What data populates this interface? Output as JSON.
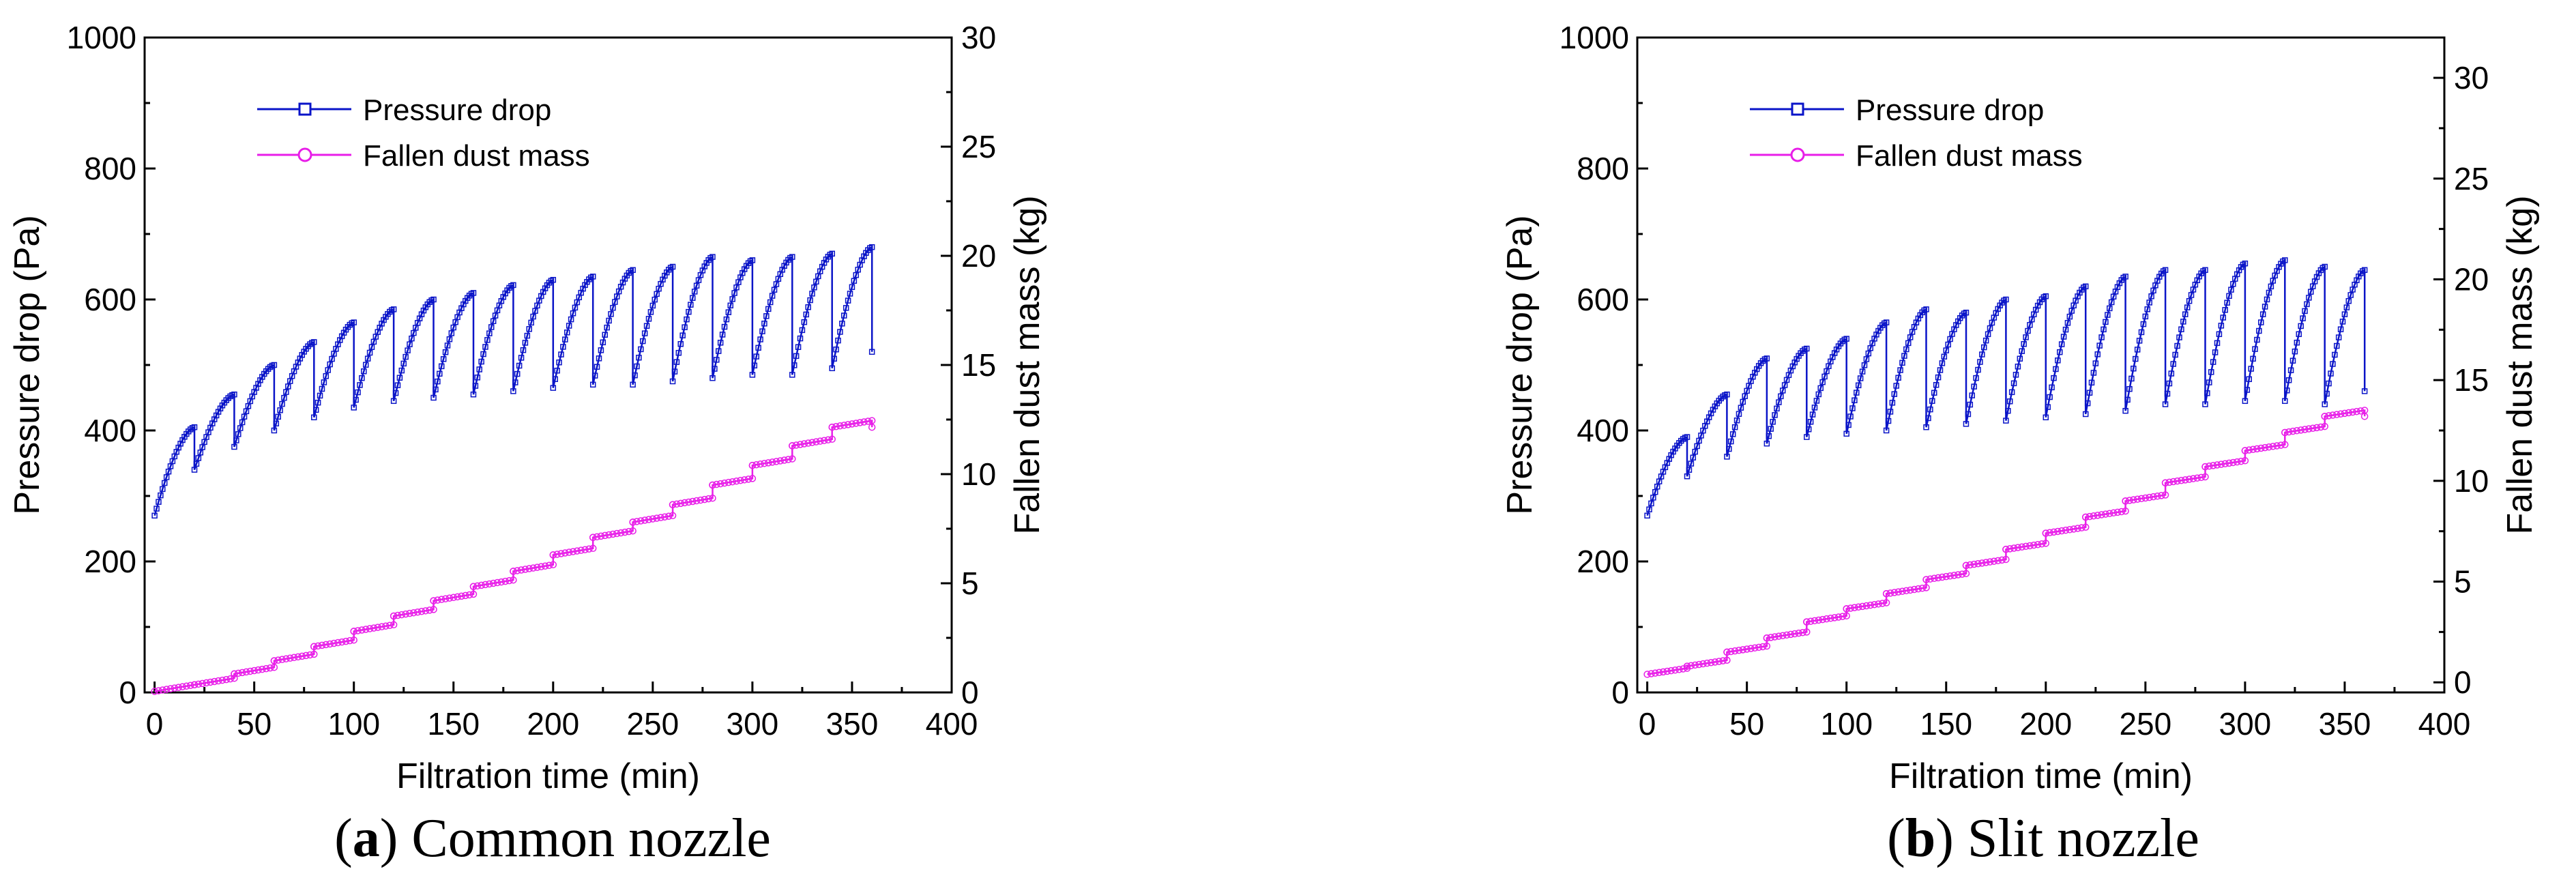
{
  "colors": {
    "pressure": "#0a14c8",
    "mass": "#e81ee8",
    "axis": "#000000"
  },
  "chart_data": [
    {
      "type": "line",
      "caption_letter": "a",
      "caption_text": " Common nozzle",
      "xlabel": "Filtration time (min)",
      "ylabel": "Pressure drop (Pa)",
      "y2label": "Fallen dust mass (kg)",
      "xlim": [
        -5,
        400
      ],
      "ylim": [
        0,
        1000
      ],
      "y2lim": [
        0,
        30
      ],
      "xticks": [
        0,
        50,
        100,
        150,
        200,
        250,
        300,
        350,
        400
      ],
      "yticks": [
        0,
        200,
        400,
        600,
        800,
        1000
      ],
      "y2ticks": [
        0,
        5,
        10,
        15,
        20,
        25,
        30
      ],
      "legend": [
        "Pressure drop",
        "Fallen dust mass"
      ],
      "legend_position": "top-left",
      "cycle_minutes": 20,
      "series": [
        {
          "name": "Pressure drop",
          "axis": "left",
          "marker": "square",
          "cycle_start_min": [
            0,
            20,
            40,
            60,
            80,
            100,
            120,
            140,
            160,
            180,
            200,
            220,
            240,
            260,
            280,
            300,
            320,
            340
          ],
          "cycle_start_pa": [
            270,
            340,
            375,
            400,
            420,
            435,
            445,
            450,
            455,
            460,
            465,
            470,
            470,
            475,
            480,
            485,
            485,
            495
          ],
          "cycle_peak_pa": [
            405,
            455,
            500,
            535,
            565,
            585,
            600,
            610,
            622,
            630,
            635,
            645,
            650,
            665,
            660,
            665,
            670,
            680
          ],
          "end": {
            "x": 360,
            "y": 520
          }
        },
        {
          "name": "Fallen dust mass",
          "axis": "right",
          "marker": "circle",
          "x": [
            0,
            20,
            40,
            60,
            80,
            100,
            120,
            140,
            160,
            180,
            200,
            220,
            240,
            260,
            280,
            300,
            320,
            340,
            360
          ],
          "y": [
            0.05,
            0.35,
            0.85,
            1.45,
            2.1,
            2.8,
            3.5,
            4.2,
            4.85,
            5.55,
            6.3,
            7.1,
            7.8,
            8.6,
            9.5,
            10.4,
            11.3,
            12.15,
            12.15
          ]
        }
      ]
    },
    {
      "type": "line",
      "caption_letter": "b",
      "caption_text": " Slit nozzle",
      "xlabel": "Filtration time (min)",
      "ylabel": "Pressure drop (Pa)",
      "y2label": "Fallen dust mass (kg)",
      "xlim": [
        -5,
        400
      ],
      "ylim": [
        0,
        1000
      ],
      "y2lim": [
        -0.5,
        32
      ],
      "xticks": [
        0,
        50,
        100,
        150,
        200,
        250,
        300,
        350,
        400
      ],
      "yticks": [
        0,
        200,
        400,
        600,
        800,
        1000
      ],
      "y2ticks": [
        0,
        5,
        10,
        15,
        20,
        25,
        30
      ],
      "legend": [
        "Pressure drop",
        "Fallen dust mass"
      ],
      "legend_position": "top-left",
      "cycle_minutes": 20,
      "series": [
        {
          "name": "Pressure drop",
          "axis": "left",
          "marker": "square",
          "cycle_start_min": [
            0,
            20,
            40,
            60,
            80,
            100,
            120,
            140,
            160,
            180,
            200,
            220,
            240,
            260,
            280,
            300,
            320,
            340
          ],
          "cycle_start_pa": [
            270,
            330,
            360,
            380,
            390,
            395,
            400,
            405,
            410,
            415,
            420,
            425,
            430,
            440,
            440,
            445,
            445,
            440
          ],
          "cycle_peak_pa": [
            390,
            455,
            510,
            525,
            540,
            565,
            585,
            580,
            600,
            605,
            620,
            635,
            645,
            645,
            655,
            660,
            650,
            645
          ],
          "end": {
            "x": 360,
            "y": 460
          }
        },
        {
          "name": "Fallen dust mass",
          "axis": "right",
          "marker": "circle",
          "x": [
            0,
            20,
            40,
            60,
            80,
            100,
            120,
            140,
            160,
            180,
            200,
            220,
            240,
            260,
            280,
            300,
            320,
            340,
            360
          ],
          "y": [
            0.4,
            0.8,
            1.5,
            2.2,
            3.0,
            3.65,
            4.4,
            5.1,
            5.8,
            6.6,
            7.4,
            8.2,
            9.0,
            9.9,
            10.7,
            11.5,
            12.4,
            13.2,
            13.2
          ]
        }
      ]
    }
  ]
}
